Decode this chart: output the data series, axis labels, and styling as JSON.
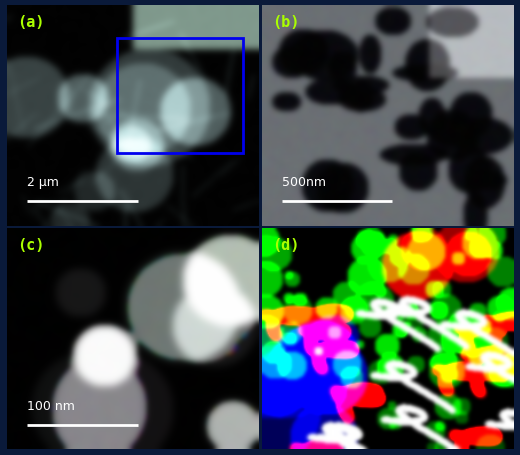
{
  "fig_width": 5.2,
  "fig_height": 4.56,
  "dpi": 100,
  "outer_bg": "#0a1a3a",
  "border_color": "#2244aa",
  "label_color": "#aaff00",
  "label_fontsize": 11,
  "scalebar_color": "#ffffff",
  "scalebar_fontsize": 9,
  "blue_rect_color": "#0000ee",
  "panel_labels": [
    "(a)",
    "(b)",
    "(c)",
    "(d)"
  ],
  "scalebars": [
    "2 μm",
    "500nm",
    "100 nm",
    ""
  ]
}
